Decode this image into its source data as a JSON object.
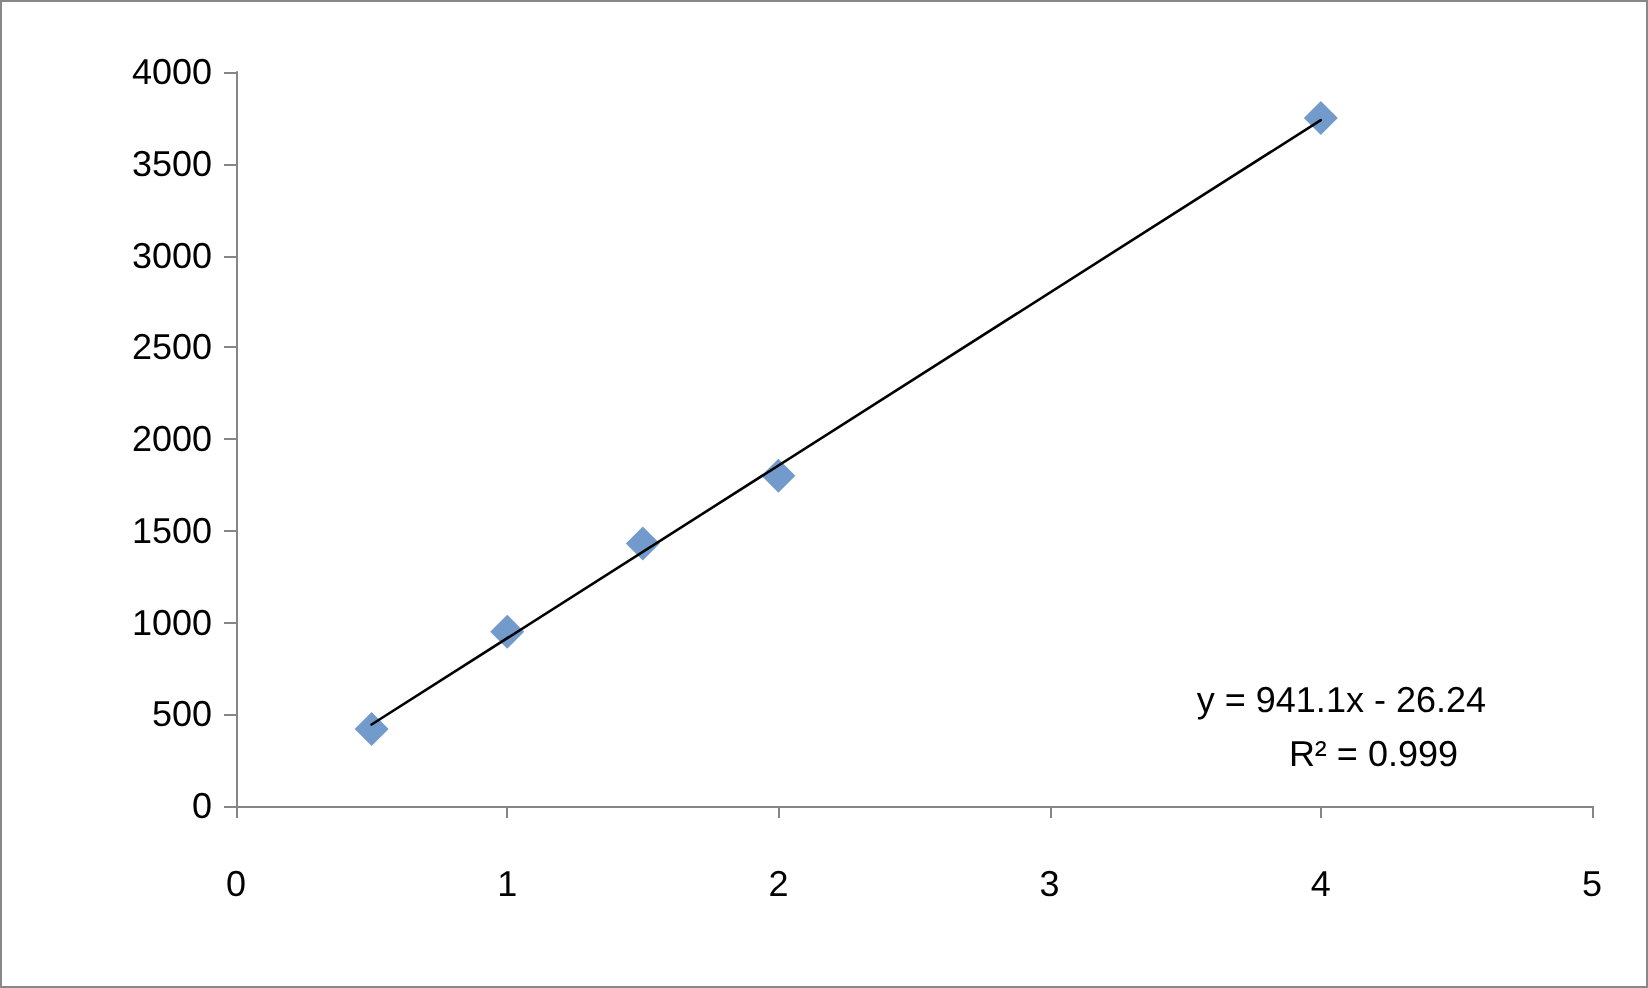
{
  "chart_data": {
    "type": "scatter",
    "x": [
      0.5,
      1,
      1.5,
      2,
      4
    ],
    "marker": "diamond",
    "series": [
      {
        "type": "scatter",
        "color": "#4f81bd",
        "values": [
          420,
          950,
          1430,
          1800,
          3750
        ]
      },
      {
        "type": "line",
        "color": "#000000",
        "x": [
          0.5,
          4
        ],
        "values": [
          444,
          3738
        ],
        "marker": "none",
        "line_style": "solid"
      }
    ],
    "xlim": [
      0,
      5
    ],
    "xticks": [
      0,
      1,
      2,
      3,
      4,
      5
    ],
    "ylim": [
      0,
      4000
    ],
    "yticks": [
      0,
      500,
      1000,
      1500,
      2000,
      2500,
      3000,
      3500,
      4000
    ],
    "grid": false,
    "annotations": [
      "y = 941.1x - 26.24",
      "R² = 0.999"
    ]
  }
}
